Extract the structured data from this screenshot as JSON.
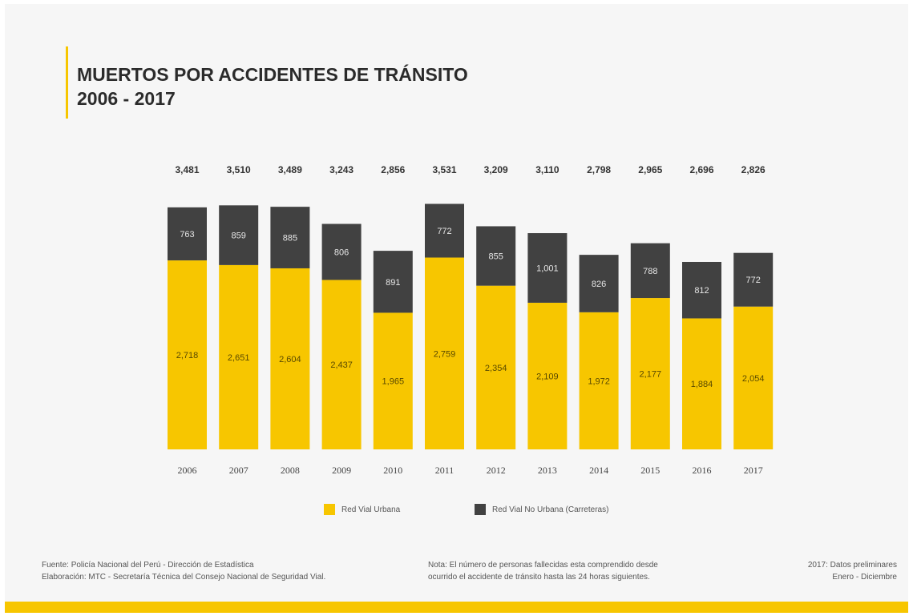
{
  "header": {
    "title_line1": "MUERTOS POR ACCIDENTES DE TRÁNSITO",
    "title_line2": "2006 - 2017"
  },
  "colors": {
    "urban": "#f7c600",
    "non_urban": "#414141",
    "accent": "#f7c600"
  },
  "chart_data": {
    "type": "bar",
    "stacked": true,
    "categories": [
      "2006",
      "2007",
      "2008",
      "2009",
      "2010",
      "2011",
      "2012",
      "2013",
      "2014",
      "2015",
      "2016",
      "2017"
    ],
    "series": [
      {
        "name": "Red Vial Urbana",
        "values": [
          2718,
          2651,
          2604,
          2437,
          1965,
          2759,
          2354,
          2109,
          1972,
          2177,
          1884,
          2054
        ]
      },
      {
        "name": "Red Vial No Urbana (Carreteras)",
        "values": [
          763,
          859,
          885,
          806,
          891,
          772,
          855,
          1001,
          826,
          788,
          812,
          772
        ]
      }
    ],
    "totals": [
      3481,
      3510,
      3489,
      3243,
      2856,
      3531,
      3209,
      3110,
      2798,
      2965,
      2696,
      2826
    ],
    "legend_position": "bottom",
    "grid": false
  },
  "legend": {
    "urban_label": "Red Vial Urbana",
    "non_urban_label": "Red Vial No Urbana (Carreteras)"
  },
  "footer": {
    "source_line1": "Fuente: Policía Nacional del Perú - Dirección de Estadística",
    "source_line2": "Elaboración: MTC - Secretaría Técnica del Consejo Nacional de Seguridad Vial.",
    "note_line1": "Nota: El número de personas fallecidas esta comprendido desde",
    "note_line2": "ocurrido el accidente de tránsito hasta las 24 horas siguientes.",
    "prelim_line1": "2017: Datos preliminares",
    "prelim_line2": "Enero - Diciembre"
  }
}
